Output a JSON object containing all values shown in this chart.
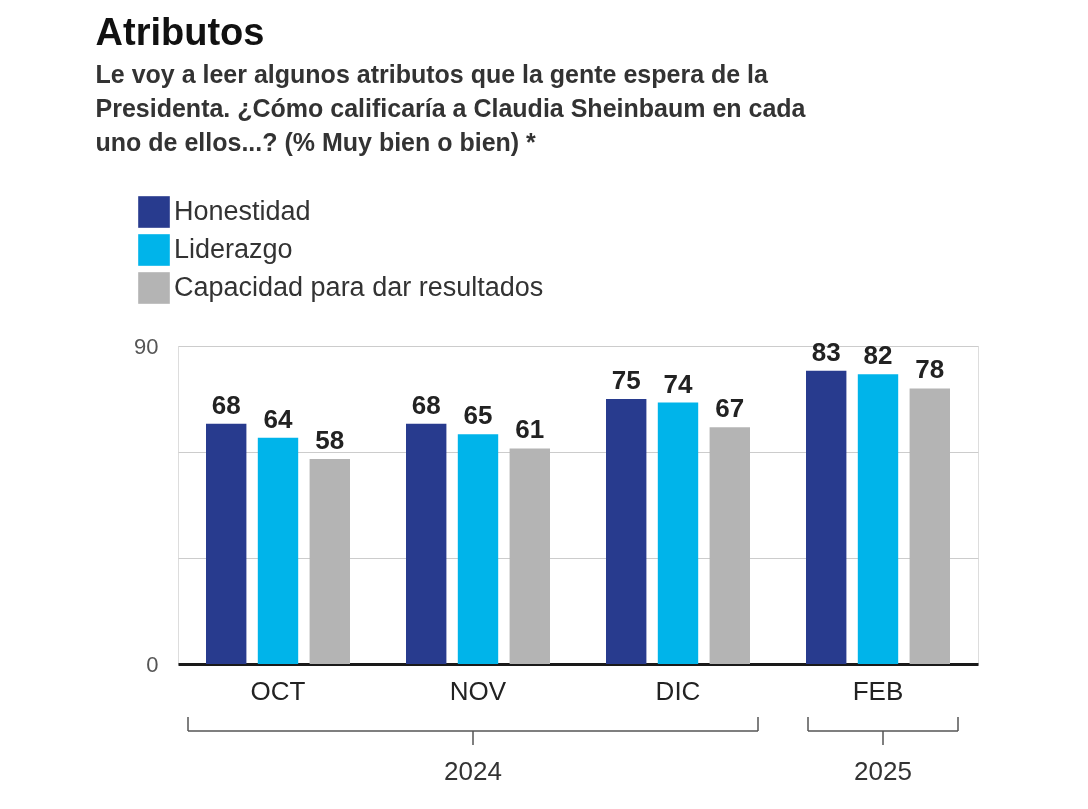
{
  "chart_data": {
    "type": "bar",
    "title": "Atributos",
    "subtitle": [
      "Le voy a leer algunos atributos que la gente espera de la",
      "Presidenta. ¿Cómo calificaría a Claudia Sheinbaum en cada",
      "uno de ellos...?  (% Muy bien o bien) *"
    ],
    "categories": [
      "OCT",
      "NOV",
      "DIC",
      "FEB"
    ],
    "series": [
      {
        "name": "Honestidad",
        "color": "#283b8e",
        "values": [
          68,
          68,
          75,
          83
        ]
      },
      {
        "name": "Liderazgo",
        "color": "#00b4ea",
        "values": [
          64,
          65,
          74,
          82
        ]
      },
      {
        "name": "Capacidad para dar resultados",
        "color": "#b4b4b4",
        "values": [
          58,
          61,
          67,
          78
        ]
      }
    ],
    "ylim": [
      0,
      90
    ],
    "yticks": [
      0,
      {
        "value": 30,
        "label": null
      },
      {
        "value": 60,
        "label": null
      },
      90
    ],
    "grid": "y",
    "legend": "top left",
    "data_labels": true,
    "annotations": [
      "2024",
      "2025"
    ]
  }
}
